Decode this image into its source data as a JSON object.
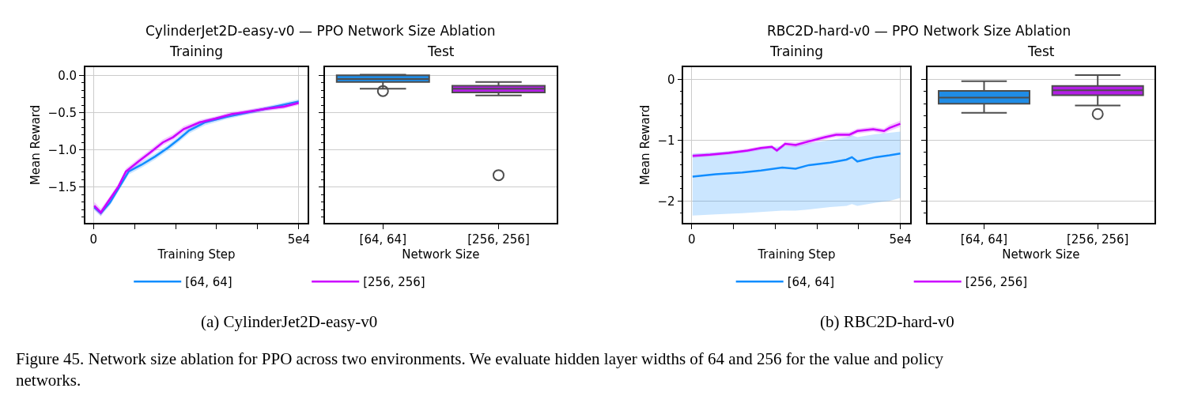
{
  "chart_data": [
    {
      "type": "line",
      "title": "Training",
      "xlabel": "Training Step",
      "ylabel": "Mean Reward",
      "grid": true,
      "legend": "bottom",
      "marker": "none",
      "line_style": "solid",
      "annotations": [
        "CylinderJet2D-easy-v0 — PPO Network Size Ablation",
        "(a) CylinderJet2D-easy-v0",
        "Figure 45. Network size ablation for PPO across two environments. We evaluate hidden layer widths of 64 and 256 for the value and policy networks."
      ],
      "xlim": [
        -2000,
        52200
      ],
      "xticks": [
        0,
        {
          "value": 10000,
          "label": null
        },
        {
          "value": 20000,
          "label": null
        },
        {
          "value": 30000,
          "label": null
        },
        {
          "value": 40000,
          "label": null
        },
        {
          "value": 50000,
          "label": "5e4"
        }
      ],
      "ylim": [
        -1.98,
        0.11
      ],
      "yticks": [
        {
          "value": 0,
          "label": "0.0"
        },
        {
          "value": -0.1,
          "label": null
        },
        {
          "value": -0.2,
          "label": null
        },
        {
          "value": -0.3,
          "label": null
        },
        {
          "value": -0.4,
          "label": null
        },
        {
          "value": -0.5,
          "label": "−0.5"
        },
        {
          "value": -0.6,
          "label": null
        },
        {
          "value": -0.7,
          "label": null
        },
        {
          "value": -0.8,
          "label": null
        },
        {
          "value": -0.9,
          "label": null
        },
        {
          "value": -1.0,
          "label": "−1.0"
        },
        {
          "value": -1.1,
          "label": null
        },
        {
          "value": -1.2,
          "label": null
        },
        {
          "value": -1.3,
          "label": null
        },
        {
          "value": -1.4,
          "label": null
        },
        {
          "value": -1.5,
          "label": "−1.5"
        },
        {
          "value": -1.6,
          "label": null
        },
        {
          "value": -1.7,
          "label": null
        },
        {
          "value": -1.8,
          "label": null
        },
        {
          "value": -1.9,
          "label": null
        }
      ],
      "series": [
        {
          "name": "[64, 64]",
          "color": "#118dff",
          "x": [
            200,
            1800,
            4000,
            8600,
            11700,
            15000,
            18200,
            20700,
            23300,
            27200,
            32300,
            37400,
            42600,
            50000
          ],
          "values": [
            -1.77,
            -1.85,
            -1.71,
            -1.29,
            -1.2,
            -1.09,
            -0.97,
            -0.86,
            -0.74,
            -0.63,
            -0.56,
            -0.5,
            -0.44,
            -0.35
          ],
          "lower": [
            -1.81,
            -1.89,
            -1.75,
            -1.33,
            -1.24,
            -1.13,
            -1.01,
            -0.9,
            -0.78,
            -0.67,
            -0.59,
            -0.53,
            -0.47,
            -0.38
          ],
          "upper": [
            -1.73,
            -1.81,
            -1.67,
            -1.25,
            -1.16,
            -1.05,
            -0.93,
            -0.82,
            -0.7,
            -0.59,
            -0.53,
            -0.47,
            -0.41,
            -0.32
          ]
        },
        {
          "name": "[256, 256]",
          "color": "#cc00ff",
          "x": [
            200,
            1800,
            3400,
            6000,
            7900,
            11100,
            13700,
            16900,
            19400,
            22000,
            25900,
            29700,
            33600,
            37400,
            41900,
            46400,
            50000
          ],
          "values": [
            -1.75,
            -1.84,
            -1.71,
            -1.5,
            -1.29,
            -1.15,
            -1.04,
            -0.9,
            -0.83,
            -0.72,
            -0.63,
            -0.58,
            -0.52,
            -0.49,
            -0.45,
            -0.42,
            -0.37
          ],
          "lower": [
            -1.8,
            -1.89,
            -1.75,
            -1.54,
            -1.33,
            -1.19,
            -1.08,
            -0.94,
            -0.87,
            -0.76,
            -0.66,
            -0.61,
            -0.55,
            -0.52,
            -0.48,
            -0.45,
            -0.4
          ],
          "upper": [
            -1.7,
            -1.79,
            -1.67,
            -1.46,
            -1.25,
            -1.11,
            -1.0,
            -0.86,
            -0.79,
            -0.68,
            -0.6,
            -0.55,
            -0.49,
            -0.46,
            -0.42,
            -0.39,
            -0.34
          ]
        }
      ]
    },
    {
      "type": "box",
      "title": "Test",
      "xlabel": "Network Size",
      "grid": "y",
      "tick_labels": "x",
      "categories": [
        "[64, 64]",
        "[256, 256]"
      ],
      "colors": [
        "#1f8ce6",
        "#b31ee6"
      ],
      "ylim": [
        -1.98,
        0.11
      ],
      "yticks": [
        0,
        {
          "value": -0.1,
          "label": null
        },
        {
          "value": -0.2,
          "label": null
        },
        {
          "value": -0.3,
          "label": null
        },
        {
          "value": -0.4,
          "label": null
        },
        -0.5,
        {
          "value": -0.6,
          "label": null
        },
        {
          "value": -0.7,
          "label": null
        },
        {
          "value": -0.8,
          "label": null
        },
        {
          "value": -0.9,
          "label": null
        },
        -1.0,
        {
          "value": -1.1,
          "label": null
        },
        {
          "value": -1.2,
          "label": null
        },
        {
          "value": -1.3,
          "label": null
        },
        {
          "value": -1.4,
          "label": null
        },
        -1.5,
        {
          "value": -1.6,
          "label": null
        },
        {
          "value": -1.7,
          "label": null
        },
        {
          "value": -1.8,
          "label": null
        },
        {
          "value": -1.9,
          "label": null
        }
      ],
      "boxes": [
        {
          "low": -0.18,
          "q1": -0.09,
          "median": -0.05,
          "q3": 0.0,
          "high": 0.01,
          "outliers": [
            -0.21
          ]
        },
        {
          "low": -0.27,
          "q1": -0.23,
          "median": -0.18,
          "q3": -0.14,
          "high": -0.09,
          "outliers": [
            -1.34
          ]
        }
      ]
    },
    {
      "type": "line",
      "title": "Training",
      "xlabel": "Training Step",
      "ylabel": "Mean Reward",
      "grid": true,
      "legend": "bottom",
      "marker": "none",
      "line_style": "solid",
      "annotations": [
        "RBC2D-hard-v0 — PPO Network Size Ablation",
        "(b) RBC2D-hard-v0"
      ],
      "xlim": [
        -2000,
        52300
      ],
      "xticks": [
        0,
        {
          "value": 10000,
          "label": null
        },
        {
          "value": 20000,
          "label": null
        },
        {
          "value": 30000,
          "label": null
        },
        {
          "value": 40000,
          "label": null
        },
        {
          "value": 50000,
          "label": "5e4"
        }
      ],
      "ylim": [
        -2.36,
        0.2
      ],
      "yticks": [
        0,
        {
          "value": -0.2,
          "label": null
        },
        {
          "value": -0.4,
          "label": null
        },
        {
          "value": -0.6,
          "label": null
        },
        {
          "value": -0.8,
          "label": null
        },
        {
          "value": -1,
          "label": "−1"
        },
        {
          "value": -1.2,
          "label": null
        },
        {
          "value": -1.4,
          "label": null
        },
        {
          "value": -1.6,
          "label": null
        },
        {
          "value": -1.8,
          "label": null
        },
        {
          "value": -2,
          "label": "−2"
        },
        {
          "value": -2.2,
          "label": null
        }
      ],
      "series": [
        {
          "name": "[64, 64]",
          "color": "#118dff",
          "x": [
            200,
            5700,
            12100,
            16600,
            21700,
            24900,
            28100,
            33200,
            37100,
            38400,
            39700,
            44100,
            47400,
            50000
          ],
          "values": [
            -1.6,
            -1.56,
            -1.53,
            -1.5,
            -1.45,
            -1.47,
            -1.41,
            -1.37,
            -1.32,
            -1.28,
            -1.35,
            -1.28,
            -1.25,
            -1.22
          ],
          "lower": [
            -2.24,
            -2.22,
            -2.2,
            -2.18,
            -2.16,
            -2.16,
            -2.14,
            -2.1,
            -2.08,
            -2.05,
            -2.08,
            -2.03,
            -2.0,
            -1.95
          ],
          "upper": [
            -1.22,
            -1.2,
            -1.17,
            -1.13,
            -1.1,
            -1.1,
            -1.05,
            -1.0,
            -0.95,
            -0.92,
            -0.95,
            -0.9,
            -0.88,
            -0.86
          ]
        },
        {
          "name": "[256, 256]",
          "color": "#cc00ff",
          "x": [
            200,
            4400,
            8900,
            13400,
            16600,
            19200,
            20400,
            22400,
            24900,
            28100,
            32000,
            34600,
            37800,
            39700,
            43500,
            46100,
            47400,
            50000
          ],
          "values": [
            -1.26,
            -1.24,
            -1.21,
            -1.17,
            -1.13,
            -1.11,
            -1.17,
            -1.06,
            -1.08,
            -1.02,
            -0.95,
            -0.91,
            -0.91,
            -0.85,
            -0.82,
            -0.85,
            -0.8,
            -0.73
          ],
          "lower": [
            -1.29,
            -1.27,
            -1.24,
            -1.2,
            -1.16,
            -1.14,
            -1.2,
            -1.1,
            -1.12,
            -1.06,
            -0.99,
            -0.95,
            -0.95,
            -0.89,
            -0.86,
            -0.89,
            -0.85,
            -0.78
          ],
          "upper": [
            -1.23,
            -1.21,
            -1.18,
            -1.14,
            -1.1,
            -1.08,
            -1.14,
            -1.02,
            -1.04,
            -0.98,
            -0.91,
            -0.87,
            -0.87,
            -0.81,
            -0.78,
            -0.81,
            -0.75,
            -0.68
          ]
        }
      ]
    },
    {
      "type": "box",
      "title": "Test",
      "xlabel": "Network Size",
      "grid": "y",
      "tick_labels": "x",
      "categories": [
        "[64, 64]",
        "[256, 256]"
      ],
      "colors": [
        "#1f8ce6",
        "#b31ee6"
      ],
      "ylim": [
        -2.36,
        0.2
      ],
      "yticks": [
        0,
        {
          "value": -0.2,
          "label": null
        },
        {
          "value": -0.4,
          "label": null
        },
        {
          "value": -0.6,
          "label": null
        },
        {
          "value": -0.8,
          "label": null
        },
        -1,
        {
          "value": -1.2,
          "label": null
        },
        {
          "value": -1.4,
          "label": null
        },
        {
          "value": -1.6,
          "label": null
        },
        {
          "value": -1.8,
          "label": null
        },
        -2,
        {
          "value": -2.2,
          "label": null
        }
      ],
      "boxes": [
        {
          "low": -0.55,
          "q1": -0.4,
          "median": -0.3,
          "q3": -0.19,
          "high": -0.03
        },
        {
          "low": -0.43,
          "q1": -0.26,
          "median": -0.18,
          "q3": -0.11,
          "high": 0.07,
          "outliers": [
            -0.57
          ]
        }
      ]
    }
  ]
}
